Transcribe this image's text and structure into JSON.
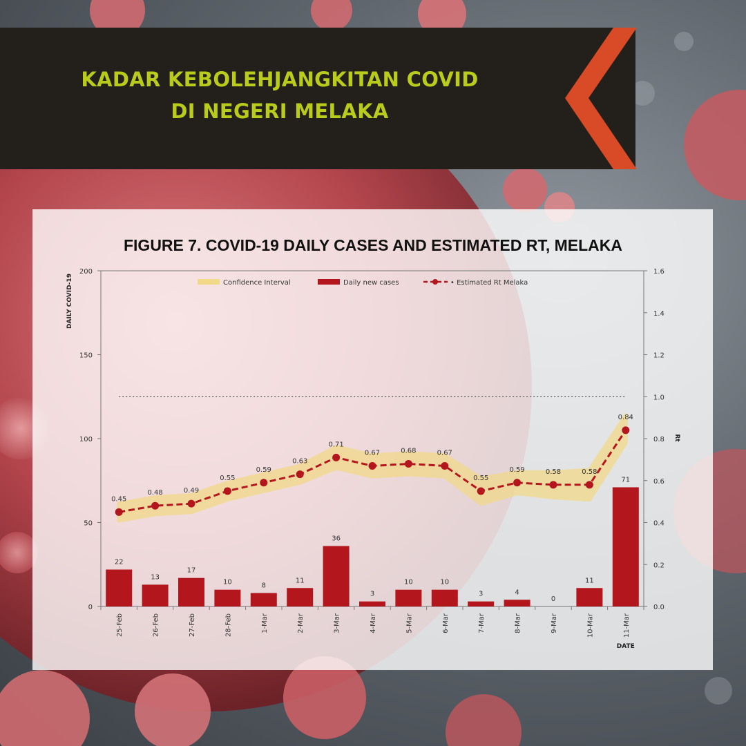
{
  "header": {
    "title_line1": "KADAR KEBOLEHJANGKITAN COVID",
    "title_line2": "DI NEGERI MELAKA"
  },
  "colors": {
    "banner_bg": "#231f1a",
    "title_color": "#b9cc1b",
    "chevron": "#d94a26",
    "bar": "#b3161d",
    "rt_line": "#b3161d",
    "ci_band": "#f2d98a"
  },
  "chart_data": {
    "type": "bar",
    "title": "FIGURE 7. COVID-19 DAILY CASES AND ESTIMATED RT, MELAKA",
    "xlabel": "DATE",
    "ylabel": "DAILY COVID-19",
    "y2label": "Rt",
    "ylim": [
      0,
      200
    ],
    "y2lim": [
      0,
      1.6
    ],
    "yticks": [
      0,
      50,
      100,
      150,
      200
    ],
    "y2ticks": [
      "0.0",
      "0.2",
      "0.4",
      "0.6",
      "0.8",
      "1.0",
      "1.2",
      "1.4",
      "1.6"
    ],
    "threshold_rt": 1.0,
    "grid": false,
    "legend_position": "top",
    "legend": [
      "Confidence Interval",
      "Daily new cases",
      "Estimated Rt Melaka"
    ],
    "categories": [
      "25-Feb",
      "26-Feb",
      "27-Feb",
      "28-Feb",
      "1-Mar",
      "2-Mar",
      "3-Mar",
      "4-Mar",
      "5-Mar",
      "6-Mar",
      "7-Mar",
      "8-Mar",
      "9-Mar",
      "10-Mar",
      "11-Mar"
    ],
    "series": [
      {
        "name": "Daily new cases",
        "type": "bar",
        "axis": "left",
        "values": [
          22,
          13,
          17,
          10,
          8,
          11,
          36,
          3,
          10,
          10,
          3,
          4,
          0,
          11,
          71
        ]
      },
      {
        "name": "Estimated Rt Melaka",
        "type": "line",
        "axis": "right",
        "values": [
          0.45,
          0.48,
          0.49,
          0.55,
          0.59,
          0.63,
          0.71,
          0.67,
          0.68,
          0.67,
          0.55,
          0.59,
          0.58,
          0.58,
          0.84
        ]
      },
      {
        "name": "Confidence Interval",
        "type": "area",
        "axis": "right",
        "lower": [
          0.41,
          0.44,
          0.45,
          0.51,
          0.55,
          0.59,
          0.66,
          0.62,
          0.63,
          0.62,
          0.49,
          0.54,
          0.52,
          0.51,
          0.78
        ],
        "upper": [
          0.49,
          0.52,
          0.53,
          0.59,
          0.63,
          0.67,
          0.76,
          0.72,
          0.73,
          0.72,
          0.61,
          0.64,
          0.64,
          0.65,
          0.91
        ]
      }
    ]
  }
}
